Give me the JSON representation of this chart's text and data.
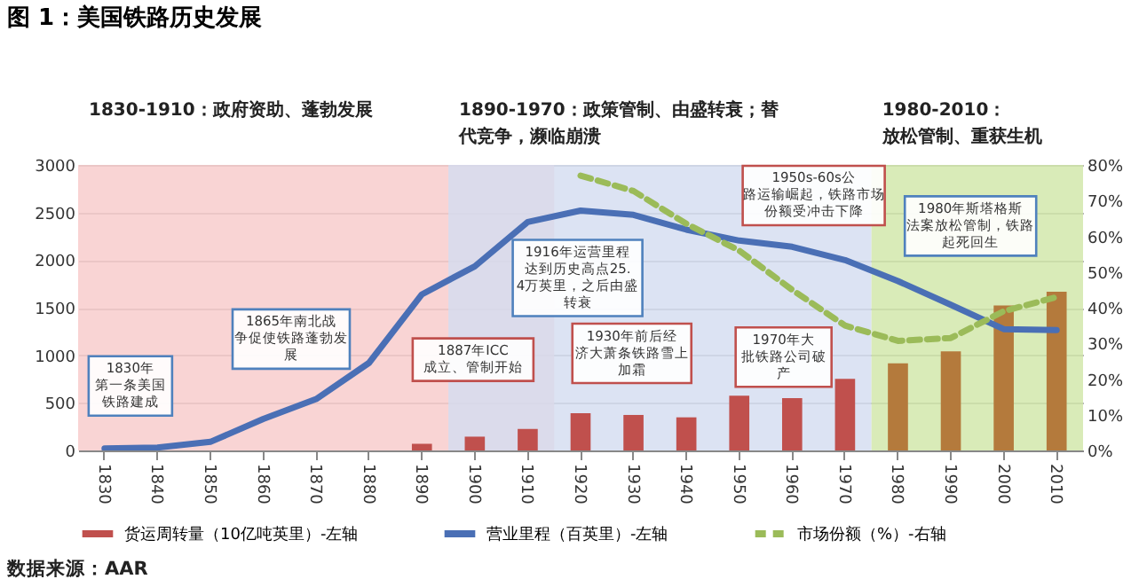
{
  "chart_data": {
    "type": "bar",
    "title": "图 1：美国铁路历史发展",
    "categories": [
      "1830",
      "1840",
      "1850",
      "1860",
      "1870",
      "1880",
      "1890",
      "1900",
      "1910",
      "1920",
      "1930",
      "1940",
      "1950",
      "1960",
      "1970",
      "1980",
      "1990",
      "2000",
      "2010"
    ],
    "series": [
      {
        "name": "货运周转量（10亿吨英里）-左轴",
        "color": "#c0504d",
        "colors": [
          "#c0504d",
          "#c0504d",
          "#c0504d",
          "#c0504d",
          "#c0504d",
          "#c0504d",
          "#c0504d",
          "#c0504d",
          "#c0504d",
          "#c0504d",
          "#c0504d",
          "#c0504d",
          "#c0504d",
          "#c0504d",
          "#c0504d",
          "#b47a3c",
          "#b47a3c",
          "#b47a3c",
          "#b47a3c"
        ],
        "values": [
          null,
          null,
          null,
          null,
          null,
          null,
          70,
          145,
          226,
          392,
          373,
          348,
          575,
          550,
          752,
          916,
          1042,
          1523,
          1667
        ]
      },
      {
        "name": "营业里程（百英里）-左轴",
        "type": "line",
        "color": "#4a6fb5",
        "line_style": "solid",
        "values": [
          20,
          30,
          90,
          330,
          540,
          920,
          1640,
          1935,
          2400,
          2520,
          2475,
          2320,
          2205,
          2140,
          2000,
          1780,
          1530,
          1275,
          1265
        ]
      },
      {
        "name": "市场份额（%）-右轴",
        "type": "line",
        "axis": "y2",
        "color": "#9bbb59",
        "line_style": "dashed",
        "values": [
          null,
          null,
          null,
          null,
          null,
          null,
          null,
          null,
          null,
          77,
          72.7,
          63.5,
          56,
          45,
          35,
          30.7,
          31.5,
          39,
          43
        ]
      }
    ],
    "ylim": [
      0,
      3000
    ],
    "yticks": [
      0,
      500,
      1000,
      1500,
      2000,
      2500,
      3000
    ],
    "y2lim": [
      0,
      80
    ],
    "y2ticks": [
      {
        "value": 0,
        "label": "0%"
      },
      {
        "value": 10,
        "label": "10%"
      },
      {
        "value": 20,
        "label": "20%"
      },
      {
        "value": 30,
        "label": "30%"
      },
      {
        "value": 40,
        "label": "40%"
      },
      {
        "value": 50,
        "label": "50%"
      },
      {
        "value": 60,
        "label": "60%"
      },
      {
        "value": 70,
        "label": "70%"
      },
      {
        "value": 80,
        "label": "80%"
      }
    ],
    "grid": "y",
    "legend": "bottom",
    "bands": [
      {
        "axis": "x",
        "from": "1830",
        "to": "1910",
        "label": "1830-1910：政府资助、蓬勃发展",
        "color": "#f7c9c9"
      },
      {
        "axis": "x",
        "from": "1900",
        "to": "1970",
        "label": "1890-1970：政策管制、由盛转衰；替代竞争，濒临崩溃",
        "color": "#d3dcf0"
      },
      {
        "axis": "x",
        "from": "1980",
        "to": "2010",
        "label": "1980-2010：放松管制、重获生机",
        "color": "#cfe6a6"
      }
    ],
    "annotations": [
      "1830年第一条美国铁路建成",
      "1865年南北战争促使铁路蓬勃发展",
      "1887年ICC成立、管制开始",
      "1916年运营里程达到历史高点25.4万英里，之后由盛转衰",
      "1930年前后经济大萧条铁路雪上加霜",
      "1950s-60s公路运输崛起，铁路市场份额受冲击下降",
      "1970年大批铁路公司破产",
      "1980年斯塔格斯法案放松管制，铁路起死回生",
      "数据来源：AAR"
    ]
  }
}
